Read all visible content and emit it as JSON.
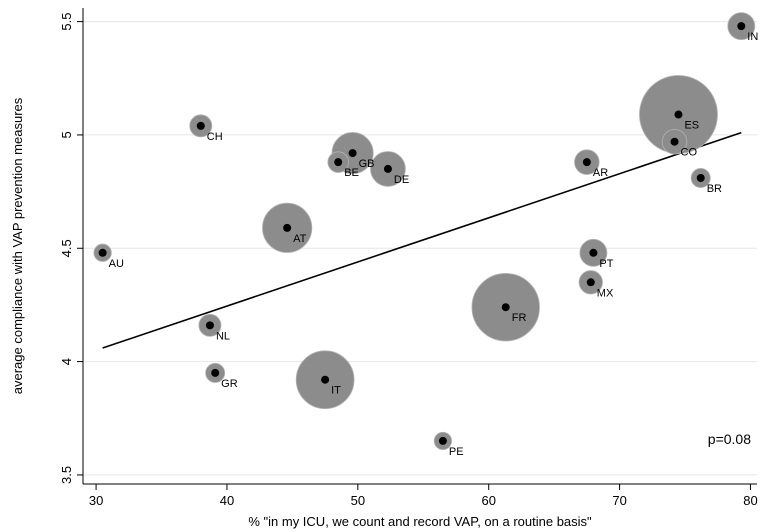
{
  "chart_data": {
    "type": "scatter",
    "title": "",
    "xlabel": "% \"in my ICU, we count and record VAP, on a routine basis\"",
    "ylabel": "average compliance with VAP prevention measures",
    "xlim": [
      29,
      80.5
    ],
    "ylim": [
      3.46,
      5.56
    ],
    "xticks": [
      "30",
      "40",
      "50",
      "60",
      "70",
      "80"
    ],
    "yticks": [
      "3.5",
      "4",
      "4.5",
      "5",
      "5.5"
    ],
    "grid": true,
    "annotation": "p=0.08",
    "fit_line": {
      "x": [
        30.5,
        79.3
      ],
      "y": [
        4.06,
        5.01
      ]
    },
    "points": [
      {
        "label": "IN",
        "x": 79.3,
        "y": 5.48,
        "weight": 0.12
      },
      {
        "label": "ES",
        "x": 74.5,
        "y": 5.09,
        "weight": 1.0
      },
      {
        "label": "CO",
        "x": 74.2,
        "y": 4.97,
        "weight": 0.1
      },
      {
        "label": "BR",
        "x": 76.2,
        "y": 4.81,
        "weight": 0.06
      },
      {
        "label": "AR",
        "x": 67.5,
        "y": 4.88,
        "weight": 0.1
      },
      {
        "label": "PT",
        "x": 68.0,
        "y": 4.48,
        "weight": 0.12
      },
      {
        "label": "MX",
        "x": 67.8,
        "y": 4.35,
        "weight": 0.09
      },
      {
        "label": "FR",
        "x": 61.3,
        "y": 4.24,
        "weight": 0.75
      },
      {
        "label": "PE",
        "x": 56.5,
        "y": 3.65,
        "weight": 0.05
      },
      {
        "label": "DE",
        "x": 52.3,
        "y": 4.85,
        "weight": 0.2
      },
      {
        "label": "GB",
        "x": 49.6,
        "y": 4.92,
        "weight": 0.28
      },
      {
        "label": "BE",
        "x": 48.5,
        "y": 4.88,
        "weight": 0.07
      },
      {
        "label": "AT",
        "x": 44.6,
        "y": 4.59,
        "weight": 0.4
      },
      {
        "label": "IT",
        "x": 47.5,
        "y": 3.92,
        "weight": 0.55
      },
      {
        "label": "CH",
        "x": 38.0,
        "y": 5.04,
        "weight": 0.08
      },
      {
        "label": "NL",
        "x": 38.7,
        "y": 4.16,
        "weight": 0.08
      },
      {
        "label": "GR",
        "x": 39.1,
        "y": 3.95,
        "weight": 0.06
      },
      {
        "label": "AU",
        "x": 30.5,
        "y": 4.48,
        "weight": 0.05
      }
    ]
  }
}
